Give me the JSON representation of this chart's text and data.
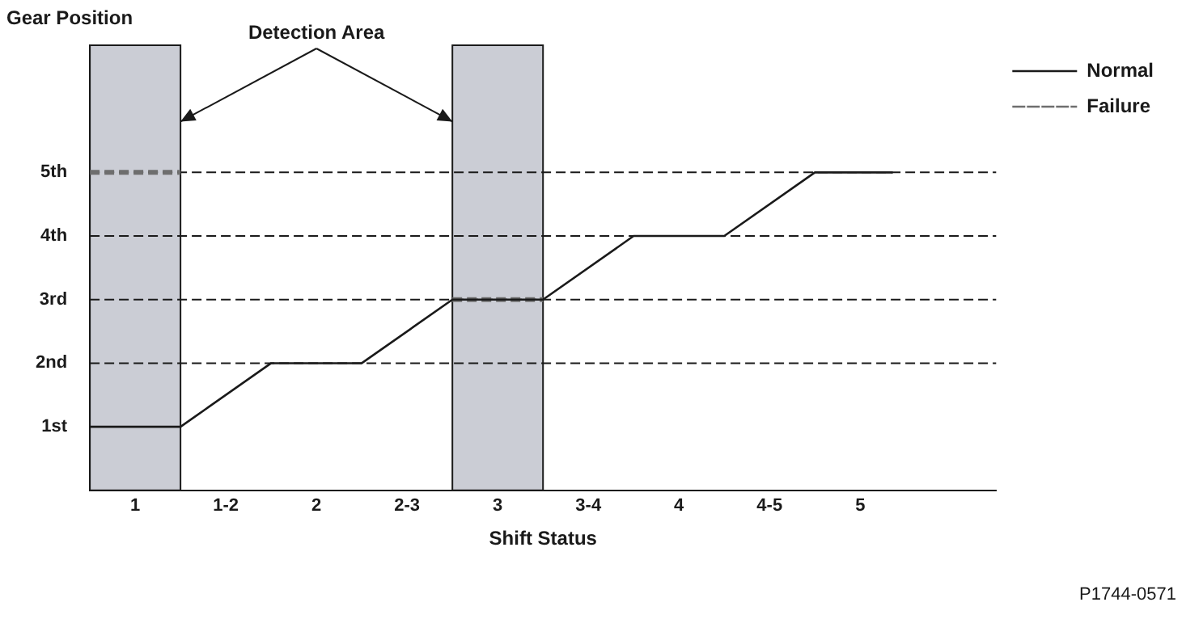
{
  "chart_data": {
    "type": "line",
    "ylabel": "Gear Position",
    "xlabel": "Shift Status",
    "xlim": [
      0.75,
      5.75
    ],
    "ylim": [
      0,
      7
    ],
    "xticks": [
      1,
      {
        "value": 1.5,
        "label": "1-2"
      },
      2,
      {
        "value": 2.5,
        "label": "2-3"
      },
      3,
      {
        "value": 3.5,
        "label": "3-4"
      },
      4,
      {
        "value": 4.5,
        "label": "4-5"
      },
      5
    ],
    "yticks": [
      {
        "value": 1,
        "label": "1st"
      },
      {
        "value": 2,
        "label": "2nd"
      },
      {
        "value": 3,
        "label": "3rd"
      },
      {
        "value": 4,
        "label": "4th"
      },
      {
        "value": 5,
        "label": "5th"
      }
    ],
    "series": [
      {
        "name": "Normal",
        "color": "#1a1a1a",
        "line_style": "solid",
        "x": [
          0.75,
          1.25,
          1.75,
          2.25,
          2.75,
          3.25,
          3.75,
          4.25,
          4.75,
          5.18
        ],
        "values": [
          1,
          1,
          2,
          2,
          3,
          3,
          4,
          4,
          5,
          5
        ]
      },
      {
        "name": "Failure",
        "color": "#6e6e6e",
        "line_style": "dashed",
        "x": [
          0.75,
          1.25,
          2,
          2.75,
          3.25
        ],
        "values": [
          5,
          5,
          null,
          3,
          3
        ]
      }
    ],
    "bands": [
      {
        "axis": "x",
        "from": 0.75,
        "to": 1.25,
        "color": "#cbcdd5"
      },
      {
        "axis": "x",
        "from": 2.75,
        "to": 3.25,
        "color": "#cbcdd5"
      }
    ],
    "ref_lines": [
      {
        "axis": "y",
        "value": 2,
        "line_style": "dashed",
        "color": "#1a1a1a"
      },
      {
        "axis": "y",
        "value": 3,
        "line_style": "dashed",
        "color": "#1a1a1a"
      },
      {
        "axis": "y",
        "value": 4,
        "line_style": "dashed",
        "color": "#1a1a1a"
      },
      {
        "axis": "y",
        "value": 5,
        "line_style": "dashed",
        "color": "#1a1a1a"
      }
    ],
    "annotations": [
      {
        "text": "Detection Area",
        "x": 1.25,
        "y": 5.8
      },
      "P1744-0571"
    ],
    "legend": "right",
    "grid": false,
    "marker": "none"
  }
}
